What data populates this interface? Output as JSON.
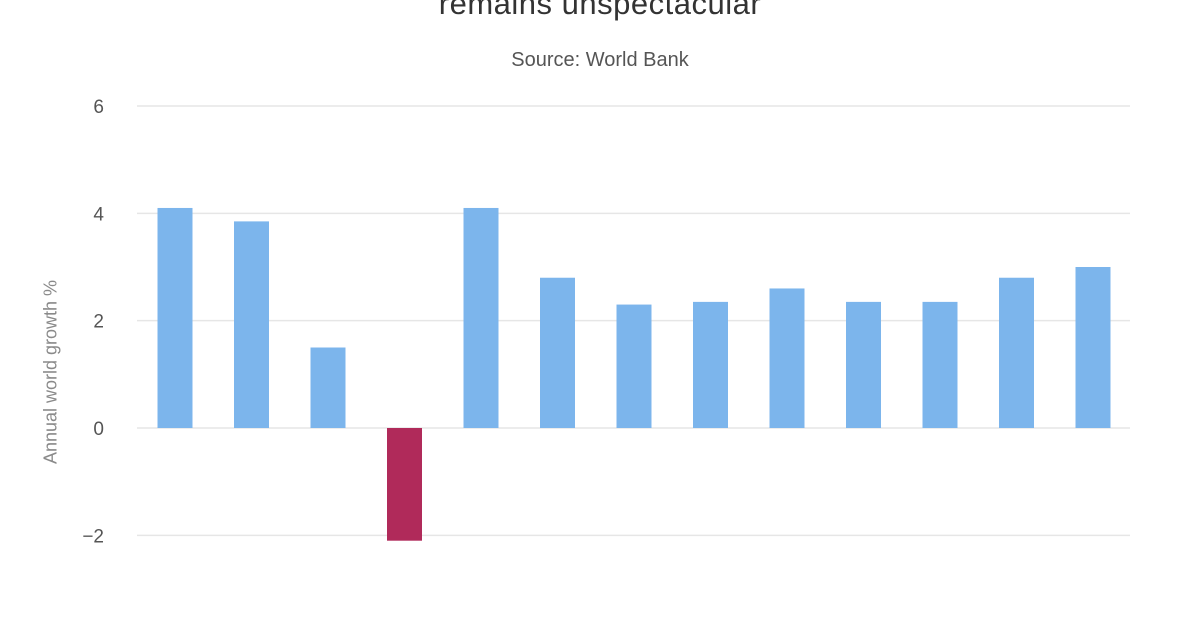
{
  "chart_data": {
    "type": "bar",
    "title": "remains unspectacular",
    "subtitle": "Source: World Bank",
    "xlabel": "",
    "ylabel": "Annual world growth %",
    "ylim": [
      -2,
      6
    ],
    "yticks": [
      6,
      4,
      2,
      0,
      -2
    ],
    "grid": true,
    "values": [
      4.1,
      3.85,
      1.5,
      -2.1,
      4.1,
      2.8,
      2.3,
      2.35,
      2.6,
      2.35,
      2.35,
      2.8,
      3.0
    ]
  },
  "colors": {
    "positive": "#7cb5ec",
    "negative": "#b02a5a",
    "grid": "#e6e6e6",
    "tick_text": "#555555"
  }
}
